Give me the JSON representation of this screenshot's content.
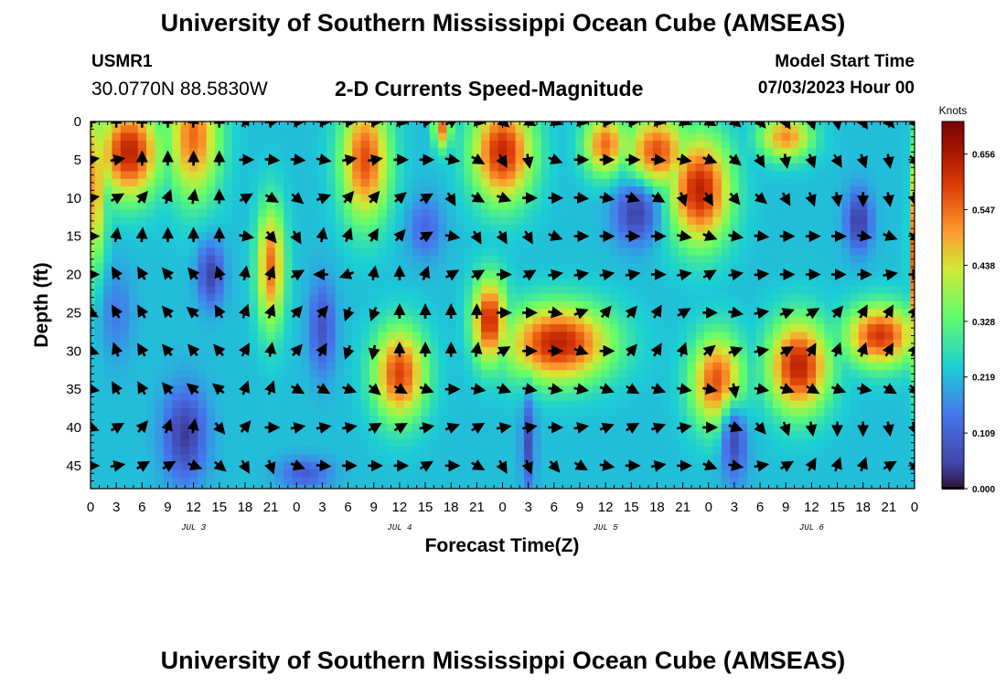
{
  "header": {
    "title": "University of Southern Mississippi Ocean Cube (AMSEAS)",
    "station": "USMR1",
    "coordinates": "30.0770N  88.5830W",
    "chart_title": "2-D Currents Speed-Magnitude",
    "model_start_label": "Model Start Time",
    "model_start_value": "07/03/2023 Hour 00"
  },
  "footer": {
    "title": "University of Southern Mississippi Ocean Cube (AMSEAS)"
  },
  "chart_data": {
    "type": "heatmap",
    "title": "2-D Currents Speed-Magnitude",
    "xlabel": "Forecast Time(Z)",
    "ylabel": "Depth (ft)",
    "x_range": [
      0,
      96
    ],
    "y_range": [
      0,
      48
    ],
    "x_ticks": [
      0,
      3,
      6,
      9,
      12,
      15,
      18,
      21,
      24,
      27,
      30,
      33,
      36,
      39,
      42,
      45,
      48,
      51,
      54,
      57,
      60,
      63,
      66,
      69,
      72,
      75,
      78,
      81,
      84,
      87,
      90,
      93,
      96
    ],
    "x_tick_labels": [
      "0",
      "3",
      "6",
      "9",
      "12",
      "15",
      "18",
      "21",
      "0",
      "3",
      "6",
      "9",
      "12",
      "15",
      "18",
      "21",
      "0",
      "3",
      "6",
      "9",
      "12",
      "15",
      "18",
      "21",
      "0",
      "3",
      "6",
      "9",
      "12",
      "15",
      "18",
      "21",
      "0"
    ],
    "y_ticks": [
      0,
      5,
      10,
      15,
      20,
      25,
      30,
      35,
      40,
      45
    ],
    "y_tick_labels": [
      "0",
      "5",
      "10",
      "15",
      "20",
      "25",
      "30",
      "35",
      "40",
      "45"
    ],
    "day_labels": [
      {
        "x": 12,
        "label": "JUL 3"
      },
      {
        "x": 36,
        "label": "JUL 4"
      },
      {
        "x": 60,
        "label": "JUL 5"
      },
      {
        "x": 84,
        "label": "JUL 6"
      }
    ],
    "colorbar": {
      "title": "Knots",
      "min": 0.0,
      "max": 0.72,
      "ticks": [
        0.0,
        0.109,
        0.219,
        0.328,
        0.438,
        0.547,
        0.656
      ],
      "tick_labels": [
        "0.000",
        "0.109",
        "0.219",
        "0.328",
        "0.438",
        "0.547",
        "0.656"
      ]
    },
    "blobs": [
      {
        "t": 4.5,
        "d": 4,
        "rt": 3.5,
        "rd": 6,
        "v": 0.7
      },
      {
        "t": 0.3,
        "d": 8,
        "rt": 1.5,
        "rd": 12,
        "v": 0.5
      },
      {
        "t": 12,
        "d": 2,
        "rt": 3,
        "rd": 8,
        "v": 0.55
      },
      {
        "t": 21,
        "d": 19,
        "rt": 1.6,
        "rd": 8,
        "v": 0.55
      },
      {
        "t": 32,
        "d": 5,
        "rt": 2.8,
        "rd": 8,
        "v": 0.6
      },
      {
        "t": 36,
        "d": 33,
        "rt": 3,
        "rd": 6,
        "v": 0.62
      },
      {
        "t": 41,
        "d": 0.5,
        "rt": 1,
        "rd": 3,
        "v": 0.55
      },
      {
        "t": 46.5,
        "d": 26,
        "rt": 2,
        "rd": 5.5,
        "v": 0.68
      },
      {
        "t": 48,
        "d": 4,
        "rt": 3.5,
        "rd": 6.5,
        "v": 0.68
      },
      {
        "t": 54.5,
        "d": 29,
        "rt": 6,
        "rd": 5,
        "v": 0.7
      },
      {
        "t": 60,
        "d": 3,
        "rt": 2.5,
        "rd": 4,
        "v": 0.55
      },
      {
        "t": 66,
        "d": 4,
        "rt": 3.5,
        "rd": 5,
        "v": 0.6
      },
      {
        "t": 71,
        "d": 9,
        "rt": 3.5,
        "rd": 7,
        "v": 0.7
      },
      {
        "t": 73,
        "d": 34,
        "rt": 3,
        "rd": 6,
        "v": 0.6
      },
      {
        "t": 82.5,
        "d": 32,
        "rt": 3.5,
        "rd": 6,
        "v": 0.7
      },
      {
        "t": 92,
        "d": 28,
        "rt": 4,
        "rd": 4,
        "v": 0.65
      },
      {
        "t": 96,
        "d": 18,
        "rt": 0.6,
        "rd": 14,
        "v": 0.55
      },
      {
        "t": 81,
        "d": 2,
        "rt": 3,
        "rd": 3,
        "v": 0.5
      }
    ],
    "lows": [
      {
        "t": 11,
        "d": 41,
        "rt": 2.5,
        "rd": 6,
        "v": 0.04
      },
      {
        "t": 14,
        "d": 20,
        "rt": 1.5,
        "rd": 4,
        "v": 0.05
      },
      {
        "t": 27,
        "d": 27,
        "rt": 1.5,
        "rd": 6,
        "v": 0.08
      },
      {
        "t": 39,
        "d": 14,
        "rt": 2,
        "rd": 4,
        "v": 0.12
      },
      {
        "t": 63.5,
        "d": 12,
        "rt": 2.5,
        "rd": 4,
        "v": 0.05
      },
      {
        "t": 89.5,
        "d": 13,
        "rt": 1.5,
        "rd": 4,
        "v": 0.04
      },
      {
        "t": 51,
        "d": 42,
        "rt": 0.8,
        "rd": 6,
        "v": 0.07
      },
      {
        "t": 75,
        "d": 42,
        "rt": 1.5,
        "rd": 5,
        "v": 0.07
      },
      {
        "t": 3,
        "d": 25,
        "rt": 2,
        "rd": 6,
        "v": 0.15
      },
      {
        "t": 25,
        "d": 46,
        "rt": 3,
        "rd": 2,
        "v": 0.1
      }
    ],
    "vector_rows": [
      {
        "depth": 0,
        "dirs": [
          350,
          0,
          0,
          0,
          5,
          0,
          30,
          80,
          90,
          90,
          90,
          90,
          100,
          80,
          60,
          100,
          130,
          120,
          110,
          100,
          90,
          90,
          100,
          110,
          120,
          130,
          140,
          150,
          160,
          170,
          150,
          140,
          135
        ]
      },
      {
        "depth": 5,
        "dirs": [
          80,
          80,
          0,
          0,
          0,
          0,
          90,
          95,
          95,
          100,
          80,
          80,
          90,
          90,
          100,
          120,
          150,
          170,
          110,
          90,
          90,
          90,
          95,
          100,
          110,
          130,
          150,
          170,
          160,
          150,
          160,
          170,
          130
        ]
      },
      {
        "depth": 10,
        "dirs": [
          80,
          60,
          40,
          20,
          10,
          0,
          60,
          120,
          130,
          70,
          40,
          40,
          50,
          60,
          150,
          120,
          110,
          90,
          90,
          95,
          100,
          110,
          120,
          160,
          150,
          140,
          130,
          150,
          160,
          170,
          180,
          170,
          170
        ]
      },
      {
        "depth": 15,
        "dirs": [
          90,
          10,
          5,
          0,
          0,
          0,
          100,
          140,
          150,
          10,
          20,
          30,
          40,
          60,
          100,
          150,
          150,
          150,
          110,
          90,
          90,
          90,
          90,
          100,
          110,
          100,
          95,
          90,
          90,
          90,
          100,
          110,
          120
        ]
      },
      {
        "depth": 20,
        "dirs": [
          90,
          330,
          330,
          320,
          320,
          340,
          10,
          20,
          60,
          270,
          250,
          10,
          0,
          20,
          60,
          60,
          90,
          60,
          80,
          80,
          80,
          80,
          90,
          80,
          60,
          80,
          85,
          90,
          90,
          90,
          90,
          80,
          90
        ]
      },
      {
        "depth": 25,
        "dirs": [
          120,
          330,
          330,
          320,
          310,
          330,
          20,
          20,
          40,
          40,
          200,
          200,
          0,
          0,
          0,
          0,
          90,
          90,
          100,
          70,
          40,
          40,
          30,
          60,
          90,
          100,
          80,
          70,
          60,
          40,
          30,
          30,
          30
        ]
      },
      {
        "depth": 30,
        "dirs": [
          110,
          340,
          330,
          320,
          320,
          320,
          30,
          10,
          40,
          30,
          200,
          190,
          0,
          0,
          0,
          10,
          60,
          90,
          90,
          110,
          90,
          40,
          30,
          20,
          50,
          70,
          80,
          60,
          30,
          20,
          20,
          30,
          30
        ]
      },
      {
        "depth": 35,
        "dirs": [
          100,
          330,
          330,
          320,
          310,
          310,
          20,
          20,
          120,
          120,
          110,
          130,
          120,
          110,
          90,
          100,
          110,
          100,
          100,
          100,
          110,
          120,
          110,
          100,
          100,
          170,
          100,
          110,
          120,
          110,
          100,
          120,
          130
        ]
      },
      {
        "depth": 40,
        "dirs": [
          110,
          60,
          40,
          20,
          10,
          140,
          40,
          90,
          80,
          80,
          80,
          60,
          60,
          80,
          70,
          60,
          80,
          80,
          90,
          80,
          70,
          60,
          70,
          80,
          90,
          110,
          140,
          160,
          170,
          180,
          180,
          170,
          160
        ]
      },
      {
        "depth": 45,
        "dirs": [
          90,
          80,
          60,
          60,
          110,
          130,
          150,
          160,
          110,
          95,
          90,
          90,
          90,
          60,
          90,
          120,
          150,
          160,
          140,
          120,
          100,
          90,
          80,
          90,
          110,
          100,
          80,
          60,
          30,
          20,
          20,
          60,
          120
        ]
      }
    ]
  }
}
